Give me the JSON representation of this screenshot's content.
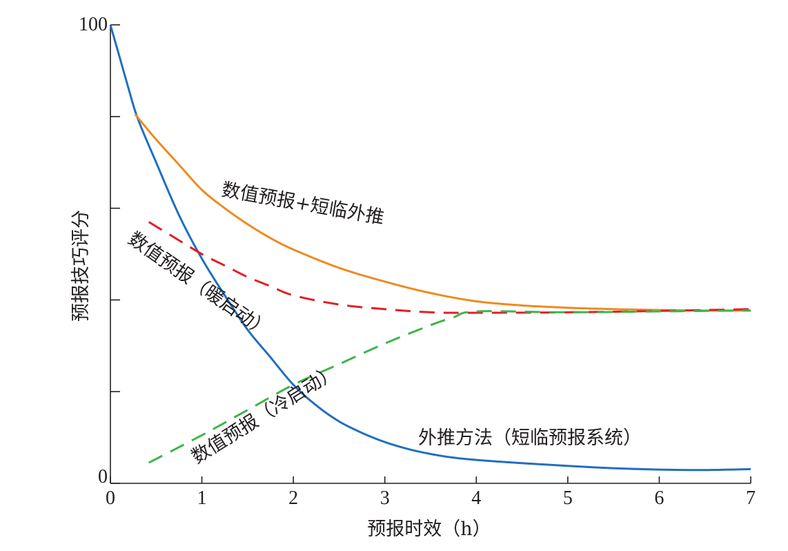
{
  "chart_data": {
    "type": "line",
    "xlabel": "预报时效（h）",
    "ylabel": "预报技巧评分",
    "xlim": [
      0,
      7
    ],
    "ylim": [
      0,
      100
    ],
    "x_ticks": [
      "0",
      "1",
      "2",
      "3",
      "4",
      "5",
      "6",
      "7"
    ],
    "y_ticks": [
      "0",
      "",
      "",
      "",
      "",
      "",
      "",
      "100"
    ],
    "y_tick_values": [
      0,
      20,
      40,
      60,
      80,
      100
    ],
    "y_tick_labels": {
      "0": "0",
      "100": "100"
    },
    "grid": false,
    "series": [
      {
        "name": "外推方法（短临预报系统）",
        "color": "#1f6fc1",
        "dash": "solid",
        "points": [
          [
            0,
            100
          ],
          [
            0.1,
            93
          ],
          [
            0.2,
            86
          ],
          [
            0.3,
            79.5
          ],
          [
            0.5,
            70
          ],
          [
            0.75,
            58.5
          ],
          [
            1,
            49
          ],
          [
            1.25,
            41
          ],
          [
            1.5,
            33.5
          ],
          [
            1.75,
            27.5
          ],
          [
            2,
            21.5
          ],
          [
            2.25,
            17
          ],
          [
            2.5,
            13.5
          ],
          [
            2.75,
            11
          ],
          [
            3,
            9
          ],
          [
            3.25,
            7.5
          ],
          [
            3.5,
            6.4
          ],
          [
            3.75,
            5.6
          ],
          [
            4,
            5.1
          ],
          [
            4.5,
            4.4
          ],
          [
            5,
            3.8
          ],
          [
            5.5,
            3.3
          ],
          [
            6,
            3
          ],
          [
            6.5,
            2.9
          ],
          [
            7,
            3.1
          ]
        ]
      },
      {
        "name": "数值预报+短临外推",
        "color": "#ef8a1e",
        "dash": "solid",
        "points": [
          [
            0.27,
            80.5
          ],
          [
            0.5,
            75
          ],
          [
            0.75,
            69.5
          ],
          [
            1,
            64
          ],
          [
            1.25,
            60
          ],
          [
            1.5,
            56.5
          ],
          [
            1.75,
            53.5
          ],
          [
            2,
            51
          ],
          [
            2.5,
            47
          ],
          [
            3,
            44
          ],
          [
            3.5,
            41.5
          ],
          [
            4,
            39.7
          ],
          [
            4.5,
            38.8
          ],
          [
            5,
            38.3
          ],
          [
            5.5,
            38
          ],
          [
            6,
            37.8
          ],
          [
            6.5,
            37.7
          ],
          [
            7,
            37.7
          ]
        ]
      },
      {
        "name": "数值预报（暖启动）",
        "color": "#e41e26",
        "dash": "dashed",
        "points": [
          [
            0.42,
            57
          ],
          [
            0.75,
            53
          ],
          [
            1,
            50
          ],
          [
            1.25,
            47.5
          ],
          [
            1.5,
            45
          ],
          [
            1.75,
            43
          ],
          [
            2,
            41
          ],
          [
            2.5,
            39
          ],
          [
            3,
            38
          ],
          [
            3.5,
            37.3
          ],
          [
            4,
            37.2
          ],
          [
            5,
            37.3
          ],
          [
            6,
            37.6
          ],
          [
            7,
            38
          ]
        ]
      },
      {
        "name": "数值预报（冷启动）",
        "color": "#3db54a",
        "dash": "dashed",
        "points": [
          [
            0.42,
            4.5
          ],
          [
            1,
            10.5
          ],
          [
            1.5,
            16
          ],
          [
            2,
            21.5
          ],
          [
            2.5,
            26
          ],
          [
            3,
            30.5
          ],
          [
            3.5,
            34.5
          ],
          [
            3.75,
            36.2
          ],
          [
            4,
            37.5
          ],
          [
            5,
            37.3
          ],
          [
            6,
            37.5
          ],
          [
            7,
            37.7
          ]
        ]
      }
    ],
    "annotations": [
      {
        "id": "ann-orange",
        "text": "数值预报+短临外推"
      },
      {
        "id": "ann-red",
        "text": "数值预报（暖启动）"
      },
      {
        "id": "ann-green",
        "text": "数值预报（冷启动）"
      },
      {
        "id": "ann-blue",
        "text": "外推方法（短临预报系统）"
      }
    ]
  }
}
